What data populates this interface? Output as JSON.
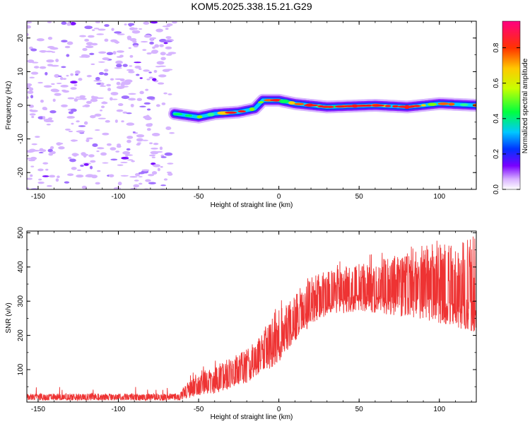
{
  "chart_data": [
    {
      "type": "heatmap",
      "title": "KOM5.2025.338.15.21.G29",
      "xlabel": "Height of straight line (km)",
      "ylabel": "Frequency (Hz)",
      "xlim": [
        -157,
        123
      ],
      "ylim": [
        -25,
        25
      ],
      "xticks": [
        -150,
        -100,
        -50,
        0,
        50,
        100
      ],
      "yticks": [
        -20,
        -10,
        0,
        10,
        20
      ],
      "colorbar": {
        "label": "Normalized spectral amplitude",
        "range": [
          0.0,
          0.95
        ],
        "ticks": [
          0.0,
          0.2,
          0.4,
          0.6,
          0.8
        ]
      },
      "ridge": [
        {
          "x": -65,
          "y": -2.5
        },
        {
          "x": -50,
          "y": -3.5
        },
        {
          "x": -40,
          "y": -2.5
        },
        {
          "x": -25,
          "y": -2
        },
        {
          "x": -15,
          "y": -1
        },
        {
          "x": -10,
          "y": 1.5
        },
        {
          "x": 0,
          "y": 1.5
        },
        {
          "x": 10,
          "y": 0.5
        },
        {
          "x": 30,
          "y": -0.5
        },
        {
          "x": 60,
          "y": 0
        },
        {
          "x": 80,
          "y": -0.5
        },
        {
          "x": 100,
          "y": 0.5
        },
        {
          "x": 123,
          "y": 0
        }
      ],
      "noise_region_x": [
        -157,
        -65
      ]
    },
    {
      "type": "line",
      "xlabel": "Height of straight line (km)",
      "ylabel": "SNR (v/v)",
      "xlim": [
        -157,
        123
      ],
      "ylim": [
        5,
        505
      ],
      "xticks": [
        -150,
        -100,
        -50,
        0,
        50,
        100
      ],
      "yticks": [
        100,
        200,
        300,
        400,
        500
      ],
      "series": [
        {
          "name": "SNR",
          "color": "#ee3333",
          "envelope": [
            {
              "x": -157,
              "low": 10,
              "high": 30
            },
            {
              "x": -62,
              "low": 10,
              "high": 30
            },
            {
              "x": -58,
              "low": 15,
              "high": 60
            },
            {
              "x": -40,
              "low": 30,
              "high": 110
            },
            {
              "x": -20,
              "low": 60,
              "high": 160
            },
            {
              "x": -10,
              "low": 90,
              "high": 210
            },
            {
              "x": 0,
              "low": 120,
              "high": 280
            },
            {
              "x": 10,
              "low": 180,
              "high": 330
            },
            {
              "x": 20,
              "low": 230,
              "high": 370
            },
            {
              "x": 30,
              "low": 260,
              "high": 390
            },
            {
              "x": 50,
              "low": 270,
              "high": 410
            },
            {
              "x": 70,
              "low": 260,
              "high": 430
            },
            {
              "x": 90,
              "low": 240,
              "high": 450
            },
            {
              "x": 110,
              "low": 220,
              "high": 470
            },
            {
              "x": 123,
              "low": 210,
              "high": 490
            }
          ]
        }
      ]
    }
  ]
}
